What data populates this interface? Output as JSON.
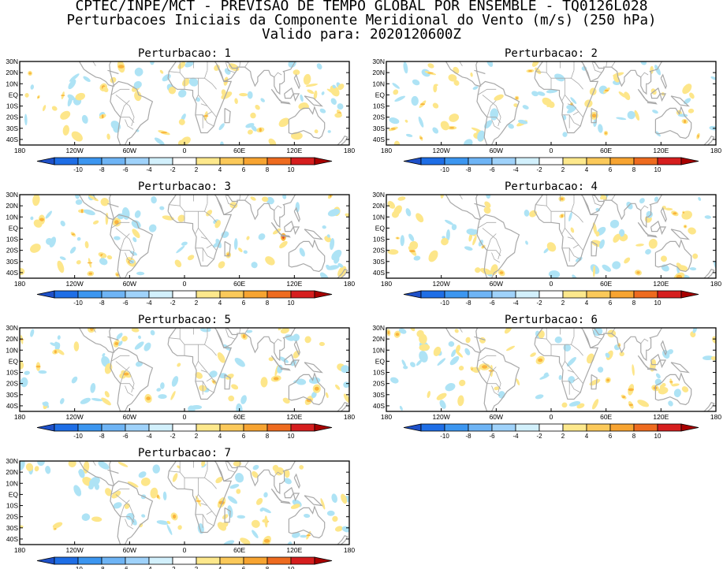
{
  "header": {
    "line1": "CPTEC/INPE/MCT - PREVISAO DE TEMPO GLOBAL POR ENSEMBLE - TQ0126L028",
    "line2": "Perturbacoes Iniciais da Componente Meridional do Vento (m/s) (250 hPa)",
    "line3": "Valido para: 2020120600Z"
  },
  "panels": [
    {
      "title": "Perturbacao: 1",
      "seed": 11
    },
    {
      "title": "Perturbacao: 2",
      "seed": 23
    },
    {
      "title": "Perturbacao: 3",
      "seed": 37
    },
    {
      "title": "Perturbacao: 4",
      "seed": 41
    },
    {
      "title": "Perturbacao: 5",
      "seed": 53
    },
    {
      "title": "Perturbacao: 6",
      "seed": 67
    },
    {
      "title": "Perturbacao: 7",
      "seed": 79
    }
  ],
  "axes": {
    "lat_labels": [
      "30N",
      "20N",
      "10N",
      "EQ",
      "10S",
      "20S",
      "30S",
      "40S"
    ],
    "lat_values": [
      30,
      20,
      10,
      0,
      -10,
      -20,
      -30,
      -40
    ],
    "lat_range": [
      -45,
      30
    ],
    "lon_labels": [
      "180",
      "120W",
      "60W",
      "0",
      "60E",
      "120E",
      "180"
    ],
    "lon_values": [
      -180,
      -120,
      -60,
      0,
      60,
      120,
      180
    ]
  },
  "colorbar": {
    "labels": [
      "-10",
      "-8",
      "-6",
      "-4",
      "-2",
      "2",
      "4",
      "6",
      "8",
      "10"
    ],
    "colors": [
      "#1e6ee6",
      "#3c96f0",
      "#6eb4f5",
      "#9fd2fa",
      "#d2f0fc",
      "#ffffff",
      "#fde88c",
      "#fbc95a",
      "#f7a431",
      "#ee6b1f",
      "#d61e1e"
    ],
    "arrow_left_color": "#1e50c8",
    "arrow_right_color": "#a80000"
  },
  "colors": {
    "coastline": "#a8a8a8",
    "positive_fill": "#fde68a",
    "positive_strong": "#f9b43c",
    "positive_peak": "#e84a1e",
    "negative_fill": "#aee3f5"
  }
}
